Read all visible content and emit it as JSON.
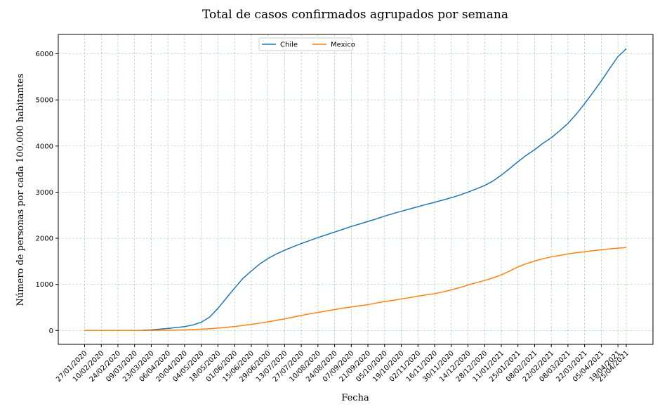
{
  "chart_data": {
    "type": "line",
    "title": "Total de casos confirmados agrupados por semana",
    "xlabel": "Fecha",
    "ylabel": "Número de personas por cada 100.000 habitantes",
    "grid": true,
    "legend_position": "top-center",
    "ylim": [
      -300,
      6420
    ],
    "yticks": [
      0,
      1000,
      2000,
      3000,
      4000,
      5000,
      6000
    ],
    "x": [
      "27/01/2020",
      "03/02/2020",
      "10/02/2020",
      "17/02/2020",
      "24/02/2020",
      "02/03/2020",
      "09/03/2020",
      "16/03/2020",
      "23/03/2020",
      "30/03/2020",
      "06/04/2020",
      "13/04/2020",
      "20/04/2020",
      "27/04/2020",
      "04/05/2020",
      "11/05/2020",
      "18/05/2020",
      "25/05/2020",
      "01/06/2020",
      "08/06/2020",
      "15/06/2020",
      "22/06/2020",
      "29/06/2020",
      "06/07/2020",
      "13/07/2020",
      "20/07/2020",
      "27/07/2020",
      "03/08/2020",
      "10/08/2020",
      "17/08/2020",
      "24/08/2020",
      "31/08/2020",
      "07/09/2020",
      "14/09/2020",
      "21/09/2020",
      "28/09/2020",
      "05/10/2020",
      "12/10/2020",
      "19/10/2020",
      "26/10/2020",
      "02/11/2020",
      "09/11/2020",
      "16/11/2020",
      "23/11/2020",
      "30/11/2020",
      "07/12/2020",
      "14/12/2020",
      "21/12/2020",
      "28/12/2020",
      "04/01/2021",
      "11/01/2021",
      "18/01/2021",
      "25/01/2021",
      "01/02/2021",
      "08/02/2021",
      "15/02/2021",
      "22/02/2021",
      "01/03/2021",
      "08/03/2021",
      "15/03/2021",
      "22/03/2021",
      "29/03/2021",
      "05/04/2021",
      "12/04/2021",
      "19/04/2021",
      "25/04/2021"
    ],
    "xtick_labels": [
      "27/01/2020",
      "10/02/2020",
      "24/02/2020",
      "09/03/2020",
      "23/03/2020",
      "06/04/2020",
      "20/04/2020",
      "04/05/2020",
      "18/05/2020",
      "01/06/2020",
      "15/06/2020",
      "29/06/2020",
      "13/07/2020",
      "27/07/2020",
      "10/08/2020",
      "24/08/2020",
      "07/09/2020",
      "21/09/2020",
      "05/10/2020",
      "19/10/2020",
      "02/11/2020",
      "16/11/2020",
      "30/11/2020",
      "14/12/2020",
      "28/12/2020",
      "11/01/2021",
      "25/01/2021",
      "08/02/2021",
      "22/02/2021",
      "08/03/2021",
      "22/03/2021",
      "05/04/2021",
      "19/04/2021",
      "25/04/2021"
    ],
    "series": [
      {
        "name": "Chile",
        "color": "#1f77b4",
        "values": [
          0,
          0,
          0,
          0,
          0,
          0,
          1,
          5,
          15,
          30,
          45,
          65,
          85,
          120,
          180,
          290,
          480,
          700,
          920,
          1130,
          1290,
          1440,
          1560,
          1660,
          1740,
          1815,
          1885,
          1950,
          2015,
          2075,
          2135,
          2195,
          2255,
          2310,
          2365,
          2420,
          2480,
          2535,
          2585,
          2635,
          2685,
          2735,
          2780,
          2830,
          2880,
          2935,
          3000,
          3070,
          3145,
          3240,
          3370,
          3510,
          3660,
          3800,
          3920,
          4060,
          4180,
          4330,
          4490,
          4690,
          4920,
          5160,
          5410,
          5680,
          5940,
          6110
        ]
      },
      {
        "name": "Mexico",
        "color": "#ff7f0e",
        "values": [
          0,
          0,
          0,
          0,
          0,
          0,
          0,
          1,
          2,
          4,
          6,
          9,
          13,
          20,
          30,
          40,
          52,
          68,
          86,
          110,
          132,
          158,
          188,
          220,
          252,
          290,
          326,
          362,
          392,
          424,
          454,
          484,
          510,
          536,
          560,
          596,
          628,
          654,
          684,
          714,
          744,
          772,
          800,
          836,
          880,
          930,
          986,
          1036,
          1086,
          1140,
          1206,
          1290,
          1380,
          1450,
          1506,
          1556,
          1596,
          1628,
          1660,
          1686,
          1708,
          1730,
          1750,
          1770,
          1786,
          1800
        ]
      }
    ]
  }
}
